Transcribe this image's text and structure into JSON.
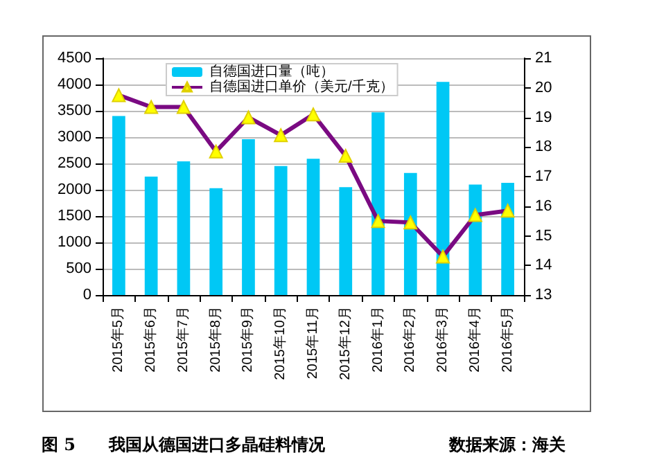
{
  "chart_data": {
    "type": "bar",
    "title": "图 5　　我国从德国进口多晶硅料情况",
    "annotations": [
      "数据来源：海关"
    ],
    "categories": [
      "2015年5月",
      "2015年6月",
      "2015年7月",
      "2015年8月",
      "2015年9月",
      "2015年10月",
      "2015年11月",
      "2015年12月",
      "2016年1月",
      "2016年2月",
      "2016年3月",
      "2016年4月",
      "2016年5月"
    ],
    "series": [
      {
        "name": "自德国进口量（吨）",
        "color": "#00c8f5",
        "values": [
          3400,
          2250,
          2540,
          2030,
          2960,
          2450,
          2590,
          2050,
          3470,
          2320,
          4050,
          2100,
          2130
        ]
      },
      {
        "name": "自德国进口单价（美元/千克）",
        "type": "line",
        "axis": "y2",
        "color": "#7a0a82",
        "values": [
          19.75,
          19.35,
          19.35,
          17.85,
          19.0,
          18.4,
          19.1,
          17.7,
          15.5,
          15.45,
          14.3,
          15.7,
          15.85
        ]
      }
    ],
    "ylim": [
      0,
      4500
    ],
    "yticks": [
      0,
      500,
      1000,
      1500,
      2000,
      2500,
      3000,
      3500,
      4000,
      4500
    ],
    "y2lim": [
      13,
      21
    ],
    "y2ticks": [
      13,
      14,
      15,
      16,
      17,
      18,
      19,
      20,
      21
    ],
    "grid": "y",
    "legend": "top",
    "marker": "triangle"
  }
}
